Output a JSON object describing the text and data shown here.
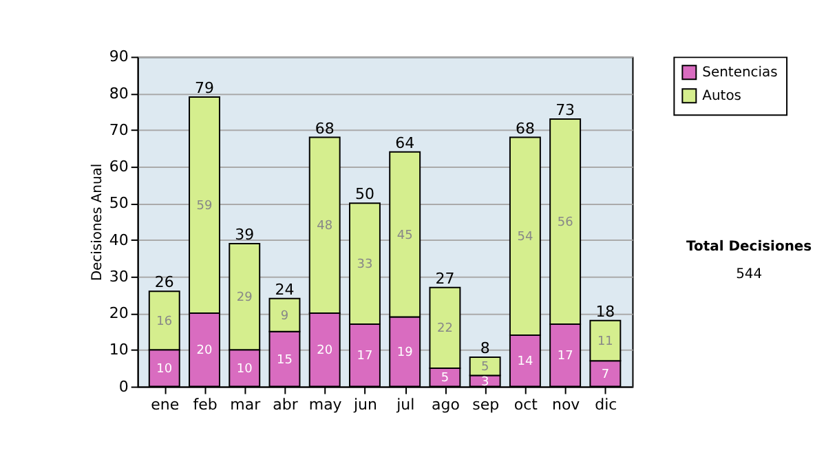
{
  "chart_data": {
    "type": "bar",
    "stacked": true,
    "ylabel": "Decisiones Anual",
    "categories": [
      "ene",
      "feb",
      "mar",
      "abr",
      "may",
      "jun",
      "jul",
      "ago",
      "sep",
      "oct",
      "nov",
      "dic"
    ],
    "series": [
      {
        "name": "Sentencias",
        "color": "#d96cc0",
        "values": [
          10,
          20,
          10,
          15,
          20,
          17,
          19,
          5,
          3,
          14,
          17,
          7
        ]
      },
      {
        "name": "Autos",
        "color": "#d5ee8e",
        "values": [
          16,
          59,
          29,
          9,
          48,
          33,
          45,
          22,
          5,
          54,
          56,
          11
        ]
      }
    ],
    "totals": [
      "26",
      "79",
      "39",
      "24",
      "68",
      "50",
      "64",
      "27",
      "8",
      "68",
      "73",
      "18"
    ],
    "data_labels": true,
    "ylim": [
      0,
      90
    ],
    "yticks": [
      0,
      10,
      20,
      30,
      40,
      50,
      60,
      70,
      80,
      90
    ],
    "grid": "y",
    "legend": "right",
    "annotations": [
      "Total Decisiones",
      "544"
    ]
  }
}
